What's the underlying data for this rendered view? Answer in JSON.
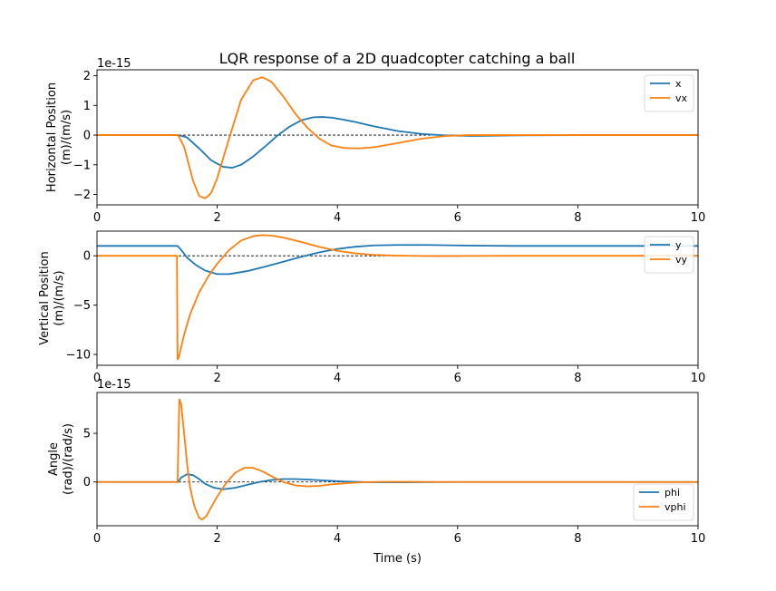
{
  "title": "LQR response of a 2D quadcopter catching a ball",
  "chart_data": [
    {
      "type": "line",
      "ylabel": [
        "Horizontal Position",
        "(m)/(m/s)"
      ],
      "xlabel": "",
      "offset_text": "1e-15",
      "xlim": [
        0,
        10
      ],
      "ylim": [
        -2.35,
        2.2
      ],
      "xticks": [
        0,
        2,
        4,
        6,
        8,
        10
      ],
      "yticks": [
        -2,
        -1,
        0,
        1,
        2
      ],
      "legend_loc": "upper right",
      "reference_line": 0,
      "series": [
        {
          "name": "x",
          "color": "#1f77b4",
          "x": [
            0,
            1.0,
            1.35,
            1.5,
            1.7,
            1.9,
            2.1,
            2.25,
            2.4,
            2.6,
            2.8,
            3.0,
            3.2,
            3.4,
            3.6,
            3.75,
            3.9,
            4.1,
            4.3,
            4.6,
            5.0,
            5.4,
            5.8,
            6.2,
            6.6,
            7.0,
            8.0,
            10.0
          ],
          "y": [
            0,
            0,
            0,
            -0.08,
            -0.45,
            -0.85,
            -1.07,
            -1.1,
            -1.0,
            -0.72,
            -0.38,
            -0.02,
            0.28,
            0.5,
            0.6,
            0.61,
            0.59,
            0.52,
            0.44,
            0.3,
            0.14,
            0.04,
            -0.01,
            -0.03,
            -0.02,
            -0.01,
            0,
            0
          ]
        },
        {
          "name": "vx",
          "color": "#ff7f0e",
          "x": [
            0,
            1.0,
            1.35,
            1.45,
            1.6,
            1.7,
            1.8,
            1.9,
            2.0,
            2.2,
            2.4,
            2.6,
            2.75,
            2.9,
            3.1,
            3.3,
            3.5,
            3.7,
            3.9,
            4.1,
            4.35,
            4.6,
            5.0,
            5.4,
            5.8,
            6.2,
            7.0,
            10.0
          ],
          "y": [
            0,
            0,
            0,
            -0.4,
            -1.55,
            -2.05,
            -2.13,
            -1.95,
            -1.45,
            -0.1,
            1.2,
            1.85,
            1.95,
            1.8,
            1.3,
            0.72,
            0.25,
            -0.12,
            -0.35,
            -0.43,
            -0.45,
            -0.41,
            -0.27,
            -0.12,
            -0.03,
            0,
            0,
            0
          ]
        }
      ]
    },
    {
      "type": "line",
      "ylabel": [
        "Vertical Position",
        "(m)/(m/s)"
      ],
      "xlabel": "",
      "offset_text": "",
      "xlim": [
        0,
        10
      ],
      "ylim": [
        -11.1,
        2.5
      ],
      "xticks": [
        0,
        2,
        4,
        6,
        8,
        10
      ],
      "yticks": [
        -10,
        -5,
        0
      ],
      "legend_loc": "upper right",
      "reference_line": 0,
      "series": [
        {
          "name": "y",
          "color": "#1f77b4",
          "x": [
            0,
            1.34,
            1.4,
            1.5,
            1.65,
            1.8,
            2.0,
            2.2,
            2.5,
            2.8,
            3.1,
            3.4,
            3.7,
            4.0,
            4.3,
            4.6,
            5.0,
            5.5,
            6.0,
            6.5,
            7.0,
            8.0,
            10.0
          ],
          "y": [
            1.0,
            1.0,
            0.6,
            -0.2,
            -0.95,
            -1.5,
            -1.85,
            -1.85,
            -1.55,
            -1.1,
            -0.6,
            -0.1,
            0.35,
            0.7,
            0.92,
            1.05,
            1.1,
            1.1,
            1.05,
            1.02,
            1.0,
            1.0,
            1.0
          ]
        },
        {
          "name": "vy",
          "color": "#ff7f0e",
          "x": [
            0,
            1.33,
            1.34,
            1.36,
            1.45,
            1.55,
            1.7,
            1.85,
            2.0,
            2.2,
            2.4,
            2.6,
            2.75,
            2.9,
            3.1,
            3.4,
            3.7,
            4.0,
            4.3,
            4.6,
            5.0,
            5.5,
            6.0,
            7.0,
            10.0
          ],
          "y": [
            0,
            0,
            -10.5,
            -10.3,
            -8.0,
            -5.9,
            -3.7,
            -2.1,
            -0.8,
            0.6,
            1.55,
            2.0,
            2.1,
            2.05,
            1.85,
            1.4,
            0.9,
            0.5,
            0.25,
            0.1,
            0.02,
            -0.03,
            -0.02,
            0,
            0
          ]
        }
      ]
    },
    {
      "type": "line",
      "ylabel": [
        "Angle",
        "(rad)/(rad/s)"
      ],
      "xlabel": "Time (s)",
      "offset_text": "1e-15",
      "xlim": [
        0,
        10
      ],
      "ylim": [
        -4.5,
        9.2
      ],
      "xticks": [
        0,
        2,
        4,
        6,
        8,
        10
      ],
      "yticks": [
        0,
        5
      ],
      "legend_loc": "lower right",
      "reference_line": 0,
      "series": [
        {
          "name": "phi",
          "color": "#1f77b4",
          "x": [
            0,
            1.35,
            1.4,
            1.5,
            1.6,
            1.7,
            1.8,
            1.95,
            2.1,
            2.3,
            2.5,
            2.7,
            2.9,
            3.1,
            3.3,
            3.5,
            3.8,
            4.1,
            4.5,
            5.0,
            6.0,
            10.0
          ],
          "y": [
            0,
            0,
            0.45,
            0.8,
            0.7,
            0.3,
            -0.2,
            -0.6,
            -0.75,
            -0.6,
            -0.3,
            0,
            0.2,
            0.3,
            0.3,
            0.25,
            0.15,
            0.05,
            -0.02,
            -0.03,
            0,
            0
          ]
        },
        {
          "name": "vphi",
          "color": "#ff7f0e",
          "x": [
            0,
            1.34,
            1.37,
            1.4,
            1.45,
            1.5,
            1.55,
            1.62,
            1.7,
            1.75,
            1.82,
            1.9,
            2.0,
            2.15,
            2.3,
            2.45,
            2.6,
            2.75,
            2.9,
            3.1,
            3.3,
            3.5,
            3.7,
            3.9,
            4.2,
            4.5,
            5.0,
            5.5,
            6.0,
            10.0
          ],
          "y": [
            0,
            0,
            8.5,
            8.0,
            5.0,
            1.8,
            -0.6,
            -2.5,
            -3.7,
            -3.85,
            -3.5,
            -2.6,
            -1.5,
            -0.1,
            0.95,
            1.45,
            1.45,
            1.1,
            0.6,
            0,
            -0.35,
            -0.45,
            -0.4,
            -0.25,
            -0.1,
            0,
            0.02,
            0.01,
            0,
            0
          ]
        }
      ]
    }
  ]
}
